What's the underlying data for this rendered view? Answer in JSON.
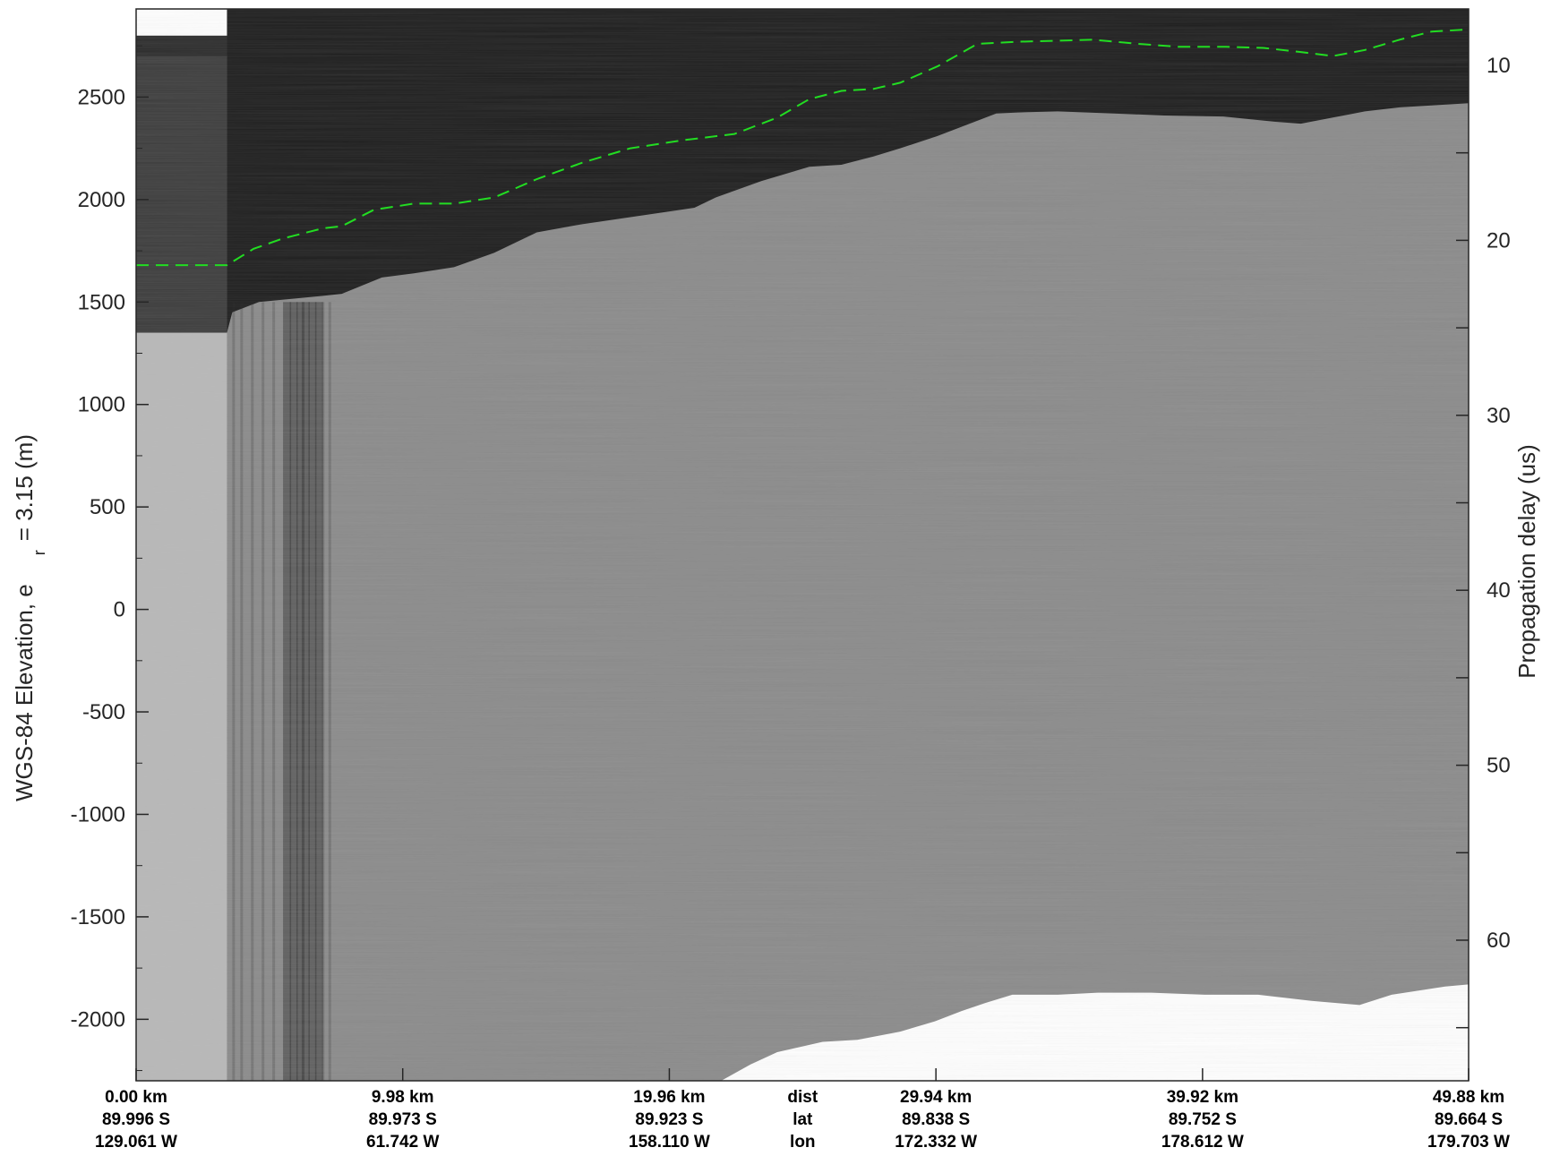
{
  "chart_data": {
    "type": "heatmap",
    "title": "",
    "ylabel_left": "WGS-84 Elevation, e",
    "ylabel_left_subscript": "r",
    "ylabel_left_suffix": "= 3.15 (m)",
    "ylabel_right": "Propagation delay (us)",
    "y_left_ticks": [
      "2500",
      "2000",
      "1500",
      "1000",
      "500",
      "0",
      "-500",
      "-1000",
      "-1500",
      "-2000"
    ],
    "y_left_values": [
      2500,
      2000,
      1500,
      1000,
      500,
      0,
      -500,
      -1000,
      -1500,
      -2000
    ],
    "y_left_range": [
      -2300,
      2930
    ],
    "y_right_ticks": [
      "10",
      "20",
      "30",
      "40",
      "50",
      "60"
    ],
    "y_right_values": [
      10,
      20,
      30,
      40,
      50,
      60
    ],
    "colormap": "gray",
    "x_range_km": [
      0,
      49.88
    ],
    "bottom_rows": {
      "dist": {
        "label": "dist",
        "values": [
          "0.00 km",
          "9.98 km",
          "19.96 km",
          "29.94 km",
          "39.92 km",
          "49.88 km"
        ]
      },
      "lat": {
        "label": "lat",
        "values": [
          "89.996 S",
          "89.973 S",
          "89.923 S",
          "89.838 S",
          "89.752 S",
          "89.664 S"
        ]
      },
      "lon": {
        "label": "lon",
        "values": [
          "129.061 W",
          "61.742 W",
          "158.110 W",
          "172.332 W",
          "178.612 W",
          "179.703 W"
        ]
      }
    },
    "x_tick_km": [
      0,
      9.98,
      19.96,
      29.94,
      39.92,
      49.88
    ],
    "surface_line": {
      "name": "",
      "color": "#22dd22",
      "style": "dashed",
      "x_km": [
        0,
        3.4,
        4.4,
        5.5,
        7.0,
        7.7,
        8.9,
        10.4,
        11.9,
        13.4,
        15.0,
        16.7,
        18.5,
        20.5,
        22.4,
        24.0,
        25.2,
        26.4,
        27.6,
        28.6,
        30.0,
        31.5,
        33.0,
        34.5,
        35.8,
        37.5,
        39.0,
        40.8,
        42.2,
        43.6,
        44.8,
        46.0,
        47.3,
        48.5,
        49.88
      ],
      "elevation_m": [
        1680,
        1680,
        1760,
        1810,
        1860,
        1870,
        1950,
        1980,
        1980,
        2010,
        2100,
        2180,
        2250,
        2290,
        2320,
        2400,
        2490,
        2530,
        2540,
        2570,
        2650,
        2760,
        2770,
        2775,
        2780,
        2760,
        2745,
        2745,
        2740,
        2720,
        2700,
        2730,
        2780,
        2820,
        2830
      ]
    },
    "ice_top_m": {
      "x_km": [
        3.4,
        3.6,
        4.6,
        7.0,
        7.7,
        9.2,
        10.4,
        11.9,
        13.4,
        15.0,
        16.7,
        20.9,
        21.7,
        23.4,
        25.2,
        26.4,
        27.6,
        28.6,
        30.0,
        32.2,
        33.0,
        34.5,
        36.6,
        38.5,
        40.7,
        42.6,
        43.6,
        44.8,
        46.0,
        47.3,
        49.88
      ],
      "elevation_m": [
        1350,
        1450,
        1500,
        1530,
        1540,
        1620,
        1640,
        1670,
        1740,
        1840,
        1880,
        1960,
        2010,
        2090,
        2160,
        2170,
        2210,
        2250,
        2310,
        2420,
        2425,
        2430,
        2420,
        2410,
        2405,
        2380,
        2370,
        2400,
        2430,
        2450,
        2470
      ]
    },
    "bed_m": {
      "x_km": [
        21.9,
        23.0,
        24.0,
        25.7,
        27.0,
        28.6,
        29.9,
        30.9,
        31.8,
        32.8,
        34.5,
        36.0,
        38.0,
        40.0,
        42.0,
        44.0,
        45.8,
        47.0,
        49.0,
        49.88
      ],
      "elevation_m": [
        -2300,
        -2220,
        -2160,
        -2110,
        -2100,
        -2060,
        -2010,
        -1960,
        -1920,
        -1880,
        -1880,
        -1870,
        -1870,
        -1880,
        -1880,
        -1910,
        -1930,
        -1880,
        -1840,
        -1830
      ]
    }
  }
}
